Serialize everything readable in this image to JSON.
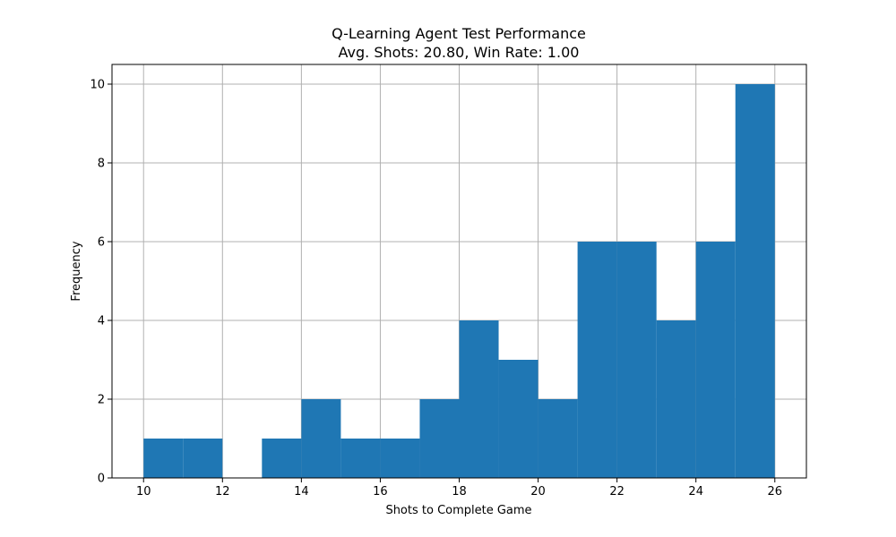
{
  "chart_data": {
    "type": "bar",
    "title": "Q-Learning Agent Test Performance",
    "subtitle": "Avg. Shots: 20.80, Win Rate: 1.00",
    "xlabel": "Shots to Complete Game",
    "ylabel": "Frequency",
    "xlim": [
      9.2,
      26.8
    ],
    "ylim": [
      0,
      10.5
    ],
    "xticks": [
      10,
      12,
      14,
      16,
      18,
      20,
      22,
      24,
      26
    ],
    "yticks": [
      0,
      2,
      4,
      6,
      8,
      10
    ],
    "grid": true,
    "bins": [
      {
        "start": 10,
        "end": 11,
        "count": 1
      },
      {
        "start": 11,
        "end": 12,
        "count": 1
      },
      {
        "start": 12,
        "end": 13,
        "count": 0
      },
      {
        "start": 13,
        "end": 14,
        "count": 1
      },
      {
        "start": 14,
        "end": 15,
        "count": 2
      },
      {
        "start": 15,
        "end": 16,
        "count": 1
      },
      {
        "start": 16,
        "end": 17,
        "count": 1
      },
      {
        "start": 17,
        "end": 18,
        "count": 2
      },
      {
        "start": 18,
        "end": 19,
        "count": 4
      },
      {
        "start": 19,
        "end": 20,
        "count": 3
      },
      {
        "start": 20,
        "end": 21,
        "count": 2
      },
      {
        "start": 21,
        "end": 22,
        "count": 6
      },
      {
        "start": 22,
        "end": 23,
        "count": 6
      },
      {
        "start": 23,
        "end": 24,
        "count": 4
      },
      {
        "start": 24,
        "end": 25,
        "count": 6
      },
      {
        "start": 25,
        "end": 26,
        "count": 10
      }
    ],
    "colors": {
      "bar": "#1f77b4",
      "grid": "#b0b0b0",
      "axis": "#000000"
    }
  }
}
